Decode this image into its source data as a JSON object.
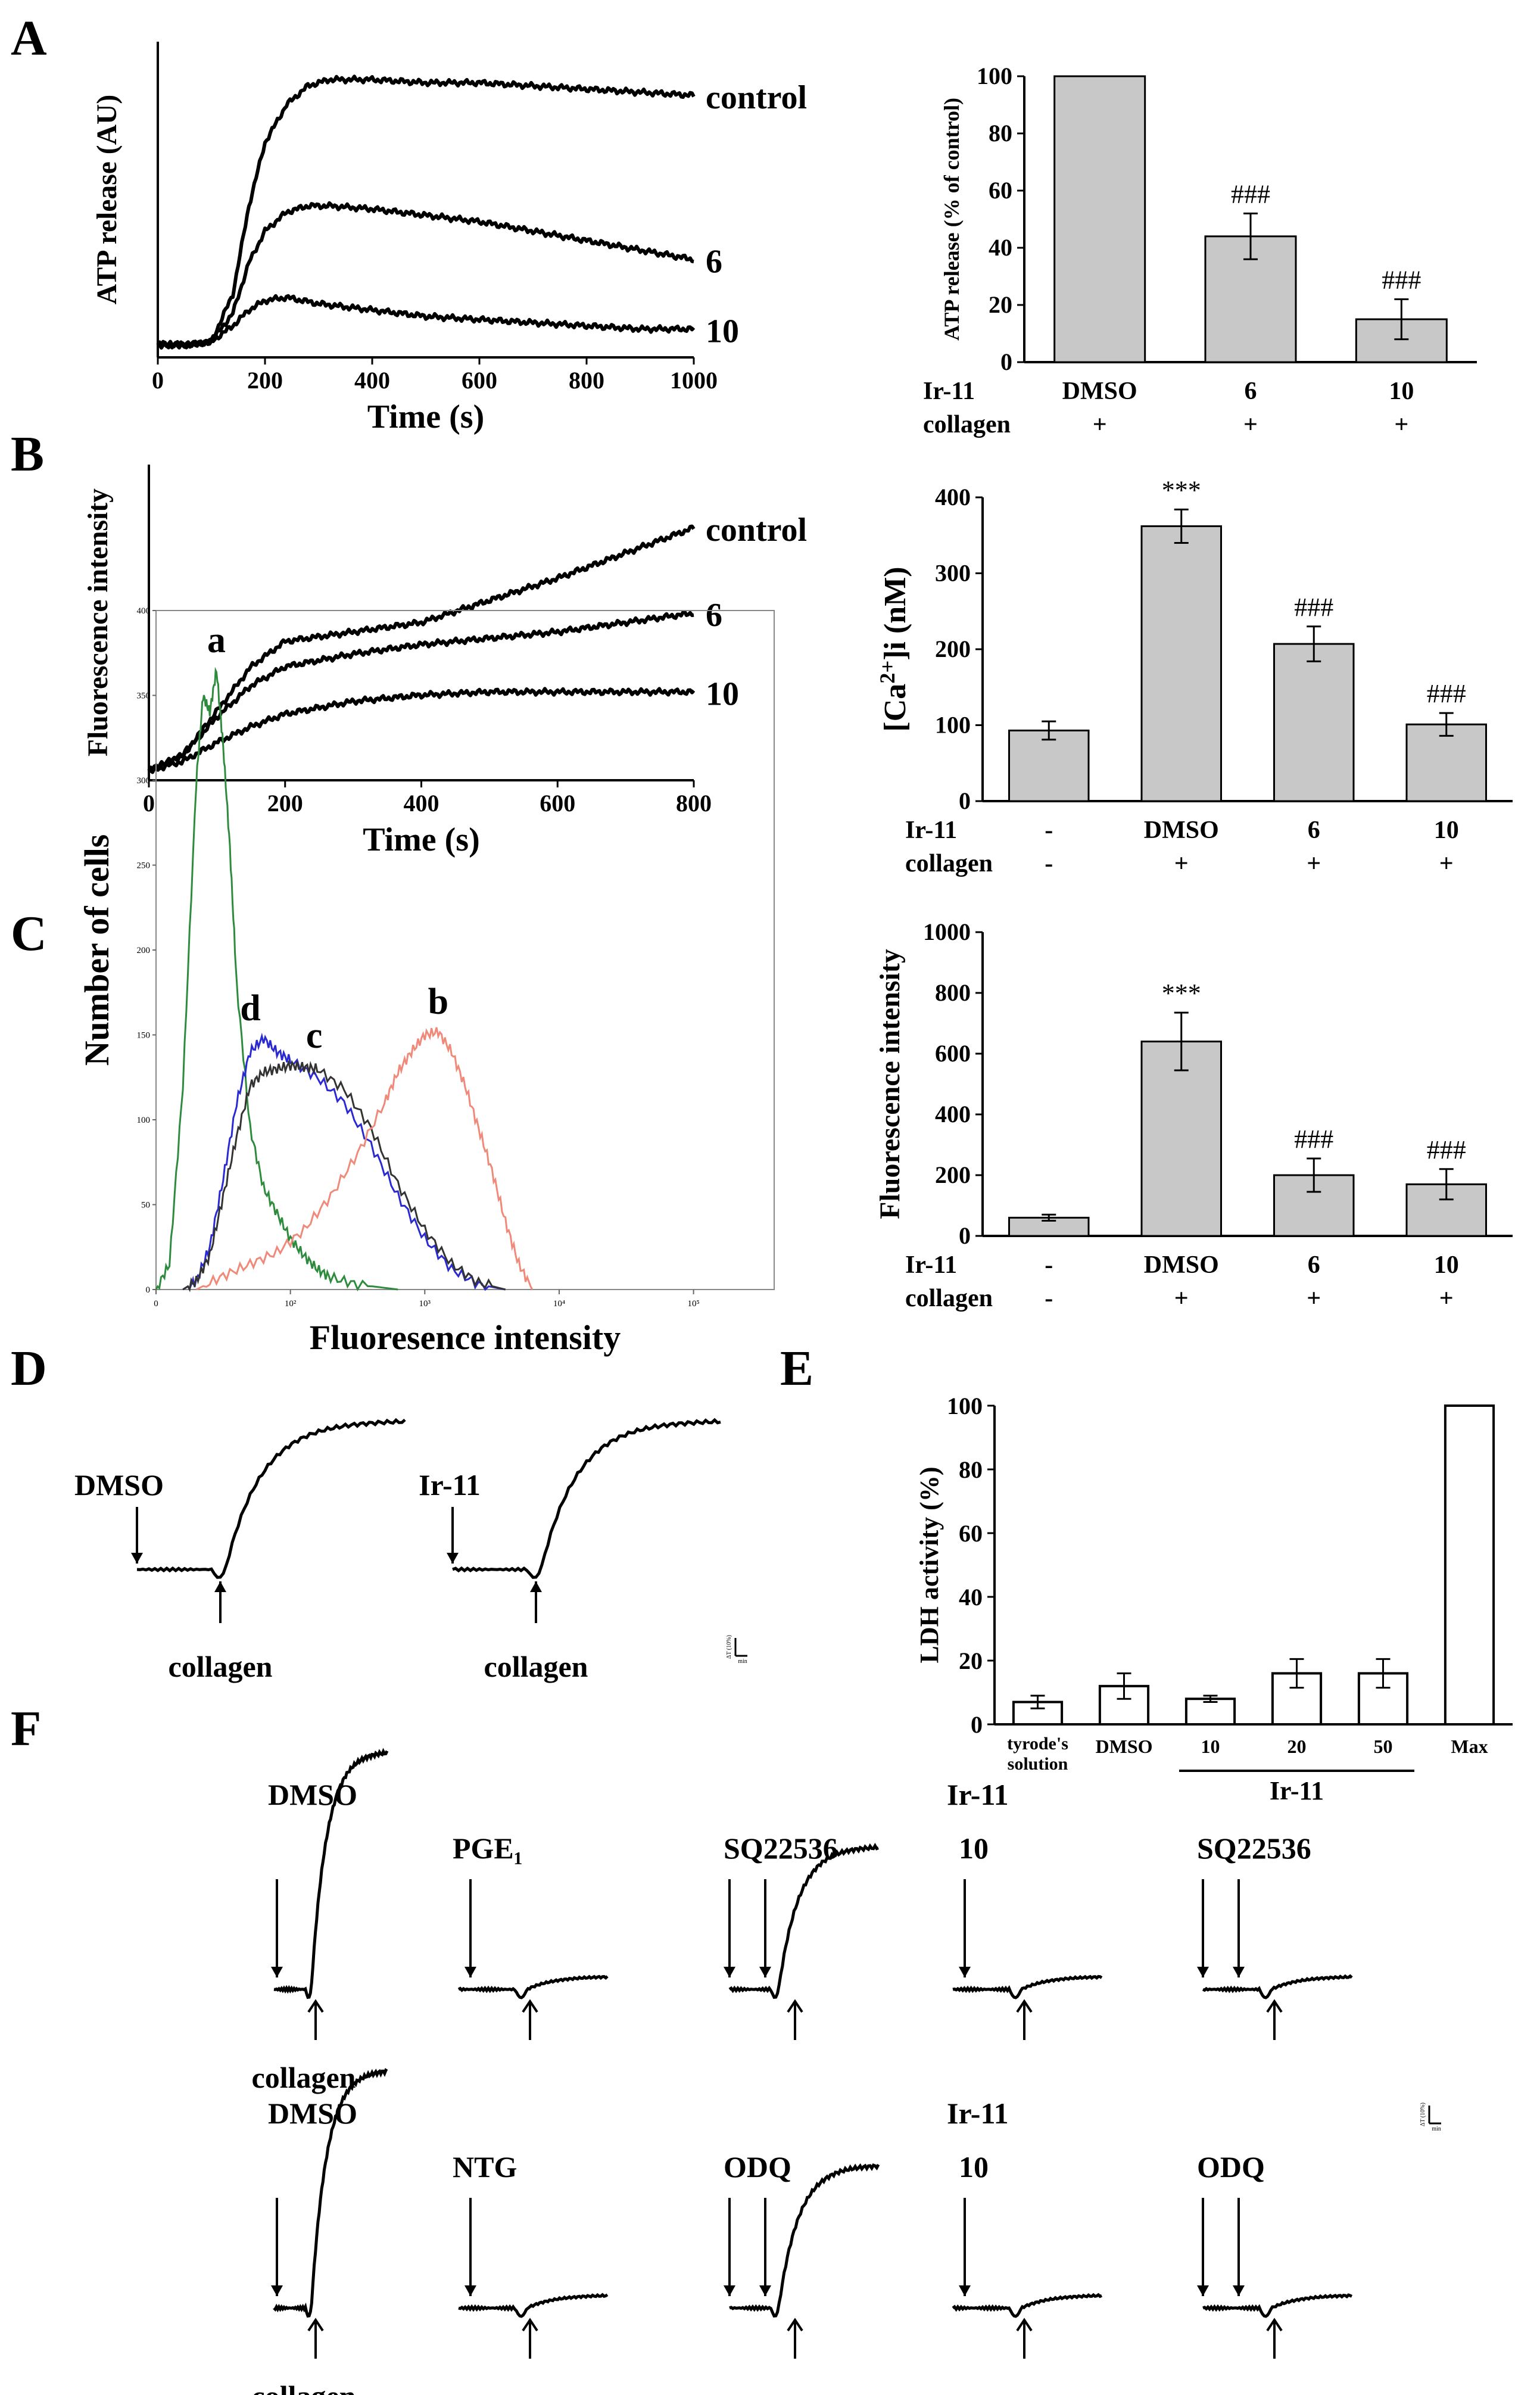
{
  "panel_labels": [
    "A",
    "B",
    "C",
    "D",
    "E",
    "F"
  ],
  "chart_data": [
    {
      "id": "A_left",
      "type": "line",
      "xlabel": "Time (s)",
      "ylabel": "ATP release (AU)",
      "xlim": [
        0,
        1000
      ],
      "xticks": [
        "0",
        "200",
        "400",
        "600",
        "800",
        "1000"
      ],
      "series": [
        {
          "name": "control",
          "x": [
            0,
            60,
            100,
            140,
            170,
            200,
            240,
            280,
            320,
            360,
            400,
            500,
            600,
            700,
            800,
            900,
            1000
          ],
          "y": [
            0.04,
            0.04,
            0.05,
            0.2,
            0.48,
            0.68,
            0.8,
            0.86,
            0.88,
            0.88,
            0.88,
            0.87,
            0.87,
            0.86,
            0.85,
            0.84,
            0.83
          ]
        },
        {
          "name": "6",
          "x": [
            0,
            60,
            100,
            140,
            170,
            200,
            240,
            280,
            320,
            400,
            500,
            600,
            700,
            800,
            900,
            1000
          ],
          "y": [
            0.04,
            0.04,
            0.05,
            0.14,
            0.3,
            0.4,
            0.46,
            0.48,
            0.48,
            0.47,
            0.45,
            0.43,
            0.4,
            0.37,
            0.34,
            0.31
          ]
        },
        {
          "name": "10",
          "x": [
            0,
            60,
            100,
            140,
            170,
            200,
            240,
            300,
            400,
            500,
            600,
            700,
            800,
            900,
            1000
          ],
          "y": [
            0.04,
            0.04,
            0.05,
            0.1,
            0.15,
            0.18,
            0.19,
            0.17,
            0.15,
            0.13,
            0.12,
            0.11,
            0.1,
            0.09,
            0.09
          ]
        }
      ]
    },
    {
      "id": "A_right",
      "type": "bar",
      "ylabel": "ATP release (% of control)",
      "ylim": [
        0,
        100
      ],
      "yticks": [
        "0",
        "20",
        "40",
        "60",
        "80",
        "100"
      ],
      "values": [
        100,
        44,
        15
      ],
      "errors": [
        0,
        8,
        7
      ],
      "sig": [
        "",
        "###",
        "###"
      ],
      "row_labels": [
        "Ir-11",
        "collagen"
      ],
      "rows": [
        [
          "DMSO",
          "6",
          "10"
        ],
        [
          "+",
          "+",
          "+"
        ]
      ]
    },
    {
      "id": "B_left",
      "type": "line",
      "xlabel": "Time (s)",
      "ylabel": "Fluorescence intensity",
      "xlim": [
        0,
        800
      ],
      "xticks": [
        "0",
        "200",
        "400",
        "600",
        "800"
      ],
      "series": [
        {
          "name": "control",
          "x": [
            0,
            50,
            100,
            150,
            200,
            300,
            400,
            500,
            600,
            700,
            800
          ],
          "y": [
            0.03,
            0.08,
            0.22,
            0.36,
            0.44,
            0.47,
            0.5,
            0.57,
            0.64,
            0.72,
            0.8
          ]
        },
        {
          "name": "6",
          "x": [
            0,
            50,
            100,
            150,
            200,
            300,
            400,
            500,
            600,
            700,
            800
          ],
          "y": [
            0.03,
            0.08,
            0.2,
            0.3,
            0.36,
            0.4,
            0.43,
            0.45,
            0.47,
            0.5,
            0.53
          ]
        },
        {
          "name": "10",
          "x": [
            0,
            50,
            100,
            150,
            200,
            300,
            400,
            500,
            600,
            700,
            800
          ],
          "y": [
            0.03,
            0.06,
            0.12,
            0.17,
            0.21,
            0.25,
            0.27,
            0.28,
            0.28,
            0.28,
            0.28
          ]
        }
      ]
    },
    {
      "id": "B_right",
      "type": "bar",
      "ylabel_main": "[Ca",
      "ylabel_sup": "2+",
      "ylabel_rest": "]i (nM)",
      "ylim": [
        0,
        400
      ],
      "yticks": [
        "0",
        "100",
        "200",
        "300",
        "400"
      ],
      "values": [
        93,
        362,
        207,
        101
      ],
      "errors": [
        12,
        22,
        23,
        15
      ],
      "sig": [
        "",
        "***",
        "###",
        "###"
      ],
      "row_labels": [
        "Ir-11",
        "collagen"
      ],
      "rows": [
        [
          "-",
          "DMSO",
          "6",
          "10"
        ],
        [
          "-",
          "+",
          "+",
          "+"
        ]
      ]
    },
    {
      "id": "C_left",
      "type": "line",
      "xlabel": "Fluoresence intensity",
      "ylabel": "Number of cells",
      "yticks": [
        "0",
        "50",
        "100",
        "150",
        "200",
        "250",
        "300",
        "350",
        "400"
      ],
      "xticks": [
        "0",
        "10²",
        "10³",
        "10⁴",
        "10⁵"
      ],
      "xticks_logval": [
        0,
        2,
        3,
        4,
        5
      ],
      "ylim": [
        0,
        400
      ],
      "series": [
        {
          "name": "a",
          "color": "#2e8b3e",
          "x": [
            1.0,
            1.1,
            1.2,
            1.3,
            1.35,
            1.4,
            1.45,
            1.5,
            1.55,
            1.6,
            1.7,
            1.8,
            1.9,
            2.0,
            2.1,
            2.2,
            2.3,
            2.5,
            2.8
          ],
          "y": [
            0,
            15,
            120,
            300,
            350,
            340,
            365,
            320,
            260,
            180,
            95,
            60,
            45,
            30,
            20,
            12,
            7,
            3,
            0
          ]
        },
        {
          "name": "d",
          "color": "#2a2ad0",
          "x": [
            1.2,
            1.3,
            1.4,
            1.5,
            1.6,
            1.7,
            1.8,
            1.9,
            2.0,
            2.2,
            2.4,
            2.6,
            2.8,
            3.0,
            3.2,
            3.4,
            3.6
          ],
          "y": [
            0,
            5,
            25,
            65,
            110,
            140,
            148,
            140,
            135,
            125,
            110,
            85,
            55,
            30,
            12,
            3,
            0
          ]
        },
        {
          "name": "c",
          "color": "#333333",
          "x": [
            1.2,
            1.3,
            1.4,
            1.5,
            1.6,
            1.7,
            1.8,
            1.9,
            2.0,
            2.1,
            2.2,
            2.4,
            2.6,
            2.8,
            3.0,
            3.2,
            3.4,
            3.6
          ],
          "y": [
            0,
            5,
            20,
            55,
            90,
            120,
            128,
            130,
            132,
            131,
            130,
            118,
            95,
            62,
            35,
            15,
            4,
            0
          ]
        },
        {
          "name": "b",
          "color": "#ef8a7a",
          "x": [
            1.3,
            1.5,
            1.7,
            1.9,
            2.1,
            2.3,
            2.5,
            2.7,
            2.8,
            2.9,
            3.0,
            3.1,
            3.2,
            3.3,
            3.4,
            3.5,
            3.6,
            3.7,
            3.8
          ],
          "y": [
            0,
            8,
            15,
            22,
            35,
            55,
            80,
            110,
            128,
            140,
            150,
            152,
            140,
            120,
            95,
            70,
            40,
            15,
            0
          ]
        }
      ]
    },
    {
      "id": "C_right",
      "type": "bar",
      "ylabel": "Fluorescence intensity",
      "ylim": [
        0,
        1000
      ],
      "yticks": [
        "0",
        "200",
        "400",
        "600",
        "800",
        "1000"
      ],
      "values": [
        60,
        640,
        200,
        170
      ],
      "errors": [
        10,
        95,
        55,
        50
      ],
      "sig": [
        "",
        "***",
        "###",
        "###"
      ],
      "row_labels": [
        "Ir-11",
        "collagen"
      ],
      "rows": [
        [
          "-",
          "DMSO",
          "6",
          "10"
        ],
        [
          "-",
          "+",
          "+",
          "+"
        ]
      ]
    },
    {
      "id": "E",
      "type": "bar",
      "ylabel": "LDH activity (%)",
      "ylim": [
        0,
        100
      ],
      "yticks": [
        "0",
        "20",
        "40",
        "60",
        "80",
        "100"
      ],
      "categories": [
        "tyrode's solution",
        "DMSO",
        "10",
        "20",
        "50",
        "Max"
      ],
      "values": [
        7,
        12,
        8,
        16,
        16,
        100
      ],
      "errors": [
        2,
        4,
        1,
        4.5,
        4.5,
        0
      ],
      "group_label": "Ir-11"
    }
  ],
  "traces_D": {
    "left_drug": "DMSO",
    "right_drug": "Ir-11",
    "agonist": "collagen",
    "scale_label": "ΔT (10%)",
    "scale_time": "min"
  },
  "traces_F": {
    "row1": [
      "DMSO",
      "PGE₁",
      "SQ22536",
      "Ir-11",
      "SQ22536"
    ],
    "row2": [
      "DMSO",
      "NTG",
      "ODQ",
      "Ir-11",
      "ODQ"
    ],
    "dose": "10",
    "agonist": "collagen",
    "scale_label": "ΔT (10%)",
    "scale_time": "min"
  }
}
